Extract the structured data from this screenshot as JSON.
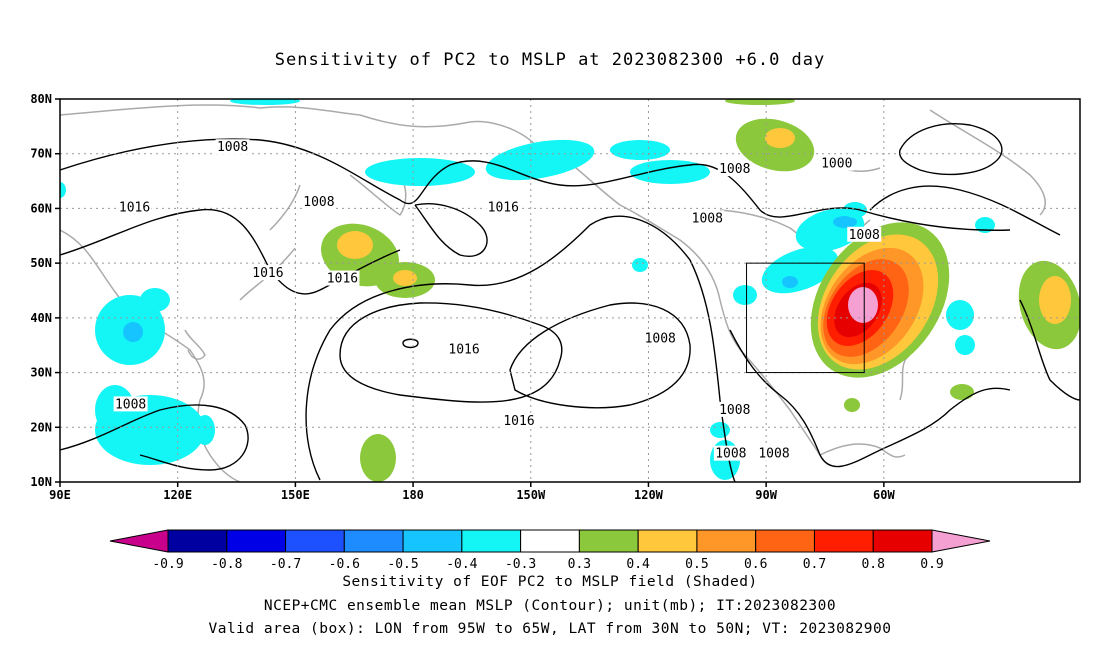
{
  "title": "Sensitivity of PC2 to MSLP at 2023082300 +6.0 day",
  "lat_ticks": [
    "80N",
    "70N",
    "60N",
    "50N",
    "40N",
    "30N",
    "20N",
    "10N"
  ],
  "lon_ticks": [
    "90E",
    "120E",
    "150E",
    "180",
    "150W",
    "120W",
    "90W",
    "60W"
  ],
  "contour_labels": [
    {
      "text": "1008",
      "lat": 71,
      "lon": 134
    },
    {
      "text": "1000",
      "lat": 68,
      "lon": -72
    },
    {
      "text": "1008",
      "lat": 67,
      "lon": -98
    },
    {
      "text": "1016",
      "lat": 60,
      "lon": 109
    },
    {
      "text": "1008",
      "lat": 61,
      "lon": 156
    },
    {
      "text": "1016",
      "lat": 60,
      "lon": -157
    },
    {
      "text": "1008",
      "lat": 58,
      "lon": -105
    },
    {
      "text": "1008",
      "lat": 55,
      "lon": -65
    },
    {
      "text": "1016",
      "lat": 48,
      "lon": 143
    },
    {
      "text": "1016",
      "lat": 47,
      "lon": 162
    },
    {
      "text": "1016",
      "lat": 34,
      "lon": -167
    },
    {
      "text": "1008",
      "lat": 36,
      "lon": -117
    },
    {
      "text": "1008",
      "lat": 24,
      "lon": 108
    },
    {
      "text": "1008",
      "lat": 23,
      "lon": -98
    },
    {
      "text": "1016",
      "lat": 21,
      "lon": -153
    },
    {
      "text": "1008",
      "lat": 15,
      "lon": -99
    },
    {
      "text": "1008",
      "lat": 15,
      "lon": -88
    }
  ],
  "valid_box": {
    "lon_min": -95,
    "lon_max": -65,
    "lat_min": 30,
    "lat_max": 50
  },
  "colorbar": {
    "labels": [
      "-0.9",
      "-0.8",
      "-0.7",
      "-0.6",
      "-0.5",
      "-0.4",
      "-0.3",
      "0.3",
      "0.4",
      "0.5",
      "0.6",
      "0.7",
      "0.8",
      "0.9"
    ],
    "colors": [
      "#c8008c",
      "#0000a0",
      "#0000e6",
      "#1d50ff",
      "#1e8cff",
      "#16c4ff",
      "#14f5f5",
      "#ffffff",
      "#8cc83c",
      "#ffc83c",
      "#ff9628",
      "#ff6414",
      "#ff1e00",
      "#e60000",
      "#f5a0d2"
    ]
  },
  "caption_line1": "Sensitivity of EOF PC2 to MSLP field (Shaded)",
  "caption_line2": "NCEP+CMC ensemble mean MSLP (Contour); unit(mb); IT:2023082300",
  "caption_line3": "Valid area (box): LON from 95W to 65W, LAT from 30N to 50N; VT: 2023082900"
}
